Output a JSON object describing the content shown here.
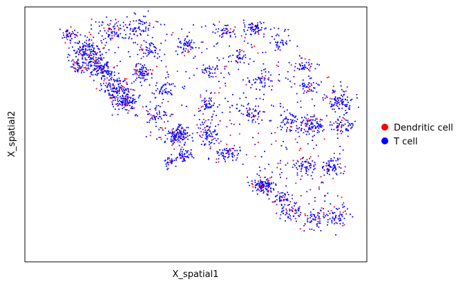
{
  "chart_data": {
    "type": "scatter",
    "xlabel": "X_spatial1",
    "ylabel": "X_spatial2",
    "grid": false,
    "ticks_visible": false,
    "legend_placement": "right-outside",
    "background_points_color": "#eeeeee",
    "legend": [
      {
        "label": "Dendritic cell",
        "color": "#ff0000"
      },
      {
        "label": "T cell",
        "color": "#0000ff"
      }
    ]
  }
}
